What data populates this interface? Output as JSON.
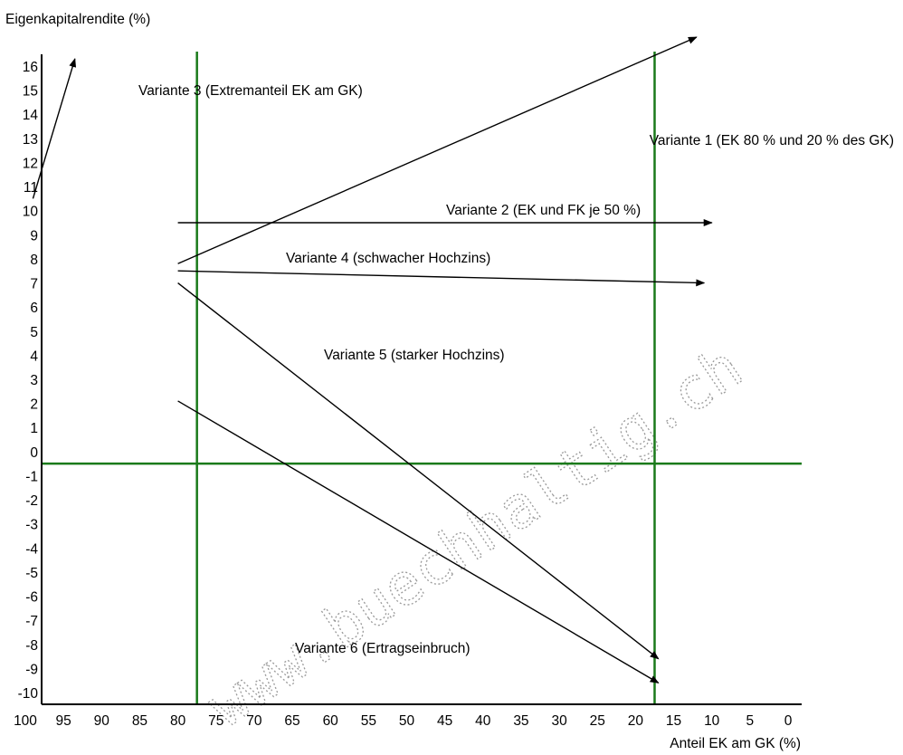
{
  "chart_data": {
    "type": "line",
    "ylabel": "Eigenkapitalrendite (%)",
    "xlabel": "Anteil EK am GK (%)",
    "x_ticks": [
      100,
      95,
      90,
      85,
      80,
      75,
      70,
      65,
      60,
      55,
      50,
      45,
      40,
      35,
      30,
      25,
      20,
      15,
      10,
      5,
      0
    ],
    "y_ticks": [
      16,
      15,
      14,
      13,
      12,
      11,
      10,
      9,
      8,
      7,
      6,
      5,
      4,
      3,
      2,
      1,
      0,
      -1,
      -2,
      -3,
      -4,
      -5,
      -6,
      -7,
      -8,
      -9,
      -10
    ],
    "xlim": [
      100,
      0
    ],
    "ylim": [
      -10.5,
      16.5
    ],
    "reference_lines": {
      "vertical_x": [
        77.5,
        17.5
      ],
      "horizontal_y": -0.5,
      "color": "#1a7a1a"
    },
    "series": [
      {
        "name": "Variante 1 (EK 80 % und 20 % des GK)",
        "x": [
          80,
          12
        ],
        "y": [
          7.8,
          17.2
        ]
      },
      {
        "name": "Variante 2 (EK und FK je 50 %)",
        "x": [
          80,
          10
        ],
        "y": [
          9.5,
          9.5
        ]
      },
      {
        "name": "Variante 3 (Extremanteil EK am GK)",
        "x": [
          99,
          93.5
        ],
        "y": [
          10.5,
          16.3
        ]
      },
      {
        "name": "Variante 4 (schwacher Hochzins)",
        "x": [
          80,
          11
        ],
        "y": [
          7.5,
          7.0
        ]
      },
      {
        "name": "Variante 5 (starker Hochzins)",
        "x": [
          80,
          17
        ],
        "y": [
          7.0,
          -8.6
        ]
      },
      {
        "name": "Variante 6 (Ertragseinbruch)",
        "x": [
          80,
          17
        ],
        "y": [
          2.1,
          -9.6
        ]
      }
    ],
    "annotation_color": "#000000"
  },
  "watermark": "www.buechhaltig.ch"
}
